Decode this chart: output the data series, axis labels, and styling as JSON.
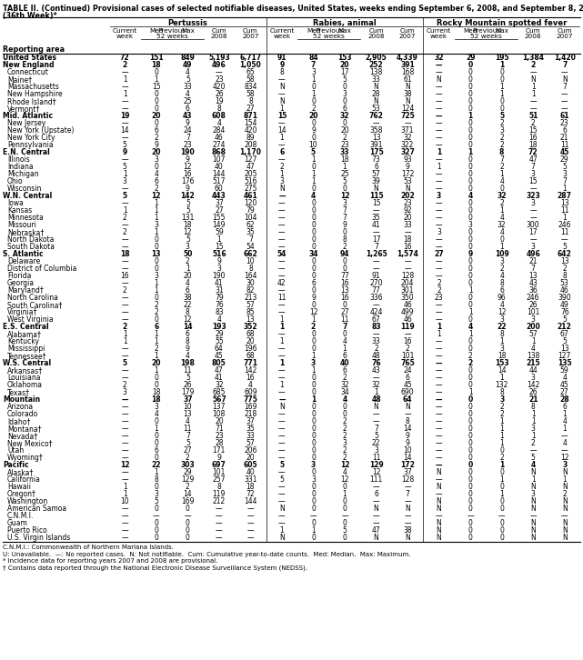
{
  "title_line1": "TABLE II. (Continued) Provisional cases of selected notifiable diseases, United States, weeks ending September 6, 2008, and September 8, 2007",
  "title_line2": "(36th Week)*",
  "diseases": [
    "Pertussis",
    "Rabies, animal",
    "Rocky Mountain spotted fever"
  ],
  "rows": [
    [
      "United States",
      "72",
      "151",
      "849",
      "5,193",
      "6,717",
      "91",
      "84",
      "153",
      "2,905",
      "4,339",
      "32",
      "29",
      "195",
      "1,384",
      "1,420"
    ],
    [
      "New England",
      "2",
      "18",
      "49",
      "496",
      "1,050",
      "9",
      "7",
      "20",
      "252",
      "391",
      "—",
      "0",
      "1",
      "2",
      "7"
    ],
    [
      "Connecticut",
      "—",
      "0",
      "4",
      "—",
      "65",
      "8",
      "3",
      "17",
      "138",
      "168",
      "—",
      "0",
      "0",
      "—",
      "—"
    ],
    [
      "Maine†",
      "1",
      "1",
      "5",
      "23",
      "58",
      "—",
      "1",
      "5",
      "33",
      "61",
      "N",
      "0",
      "0",
      "N",
      "N"
    ],
    [
      "Massachusetts",
      "—",
      "15",
      "33",
      "420",
      "834",
      "N",
      "0",
      "0",
      "N",
      "N",
      "—",
      "0",
      "1",
      "1",
      "7"
    ],
    [
      "New Hampshire",
      "1",
      "0",
      "4",
      "26",
      "58",
      "—",
      "1",
      "3",
      "28",
      "38",
      "—",
      "0",
      "1",
      "1",
      "—"
    ],
    [
      "Rhode Island†",
      "—",
      "0",
      "25",
      "19",
      "8",
      "N",
      "0",
      "0",
      "N",
      "N",
      "—",
      "0",
      "0",
      "—",
      "—"
    ],
    [
      "Vermont†",
      "—",
      "0",
      "6",
      "8",
      "27",
      "1",
      "2",
      "6",
      "53",
      "124",
      "—",
      "0",
      "0",
      "—",
      "—"
    ],
    [
      "Mid. Atlantic",
      "19",
      "20",
      "43",
      "608",
      "871",
      "15",
      "20",
      "32",
      "762",
      "725",
      "—",
      "1",
      "5",
      "51",
      "61"
    ],
    [
      "New Jersey",
      "—",
      "0",
      "9",
      "4",
      "154",
      "—",
      "0",
      "0",
      "—",
      "—",
      "—",
      "0",
      "2",
      "2",
      "23"
    ],
    [
      "New York (Upstate)",
      "14",
      "6",
      "24",
      "284",
      "420",
      "14",
      "9",
      "20",
      "358",
      "371",
      "—",
      "0",
      "3",
      "15",
      "6"
    ],
    [
      "New York City",
      "—",
      "2",
      "7",
      "46",
      "89",
      "1",
      "0",
      "2",
      "13",
      "32",
      "—",
      "0",
      "2",
      "16",
      "21"
    ],
    [
      "Pennsylvania",
      "5",
      "9",
      "23",
      "274",
      "208",
      "—",
      "10",
      "23",
      "391",
      "322",
      "—",
      "0",
      "2",
      "18",
      "11"
    ],
    [
      "E.N. Central",
      "9",
      "20",
      "190",
      "868",
      "1,170",
      "6",
      "5",
      "33",
      "175",
      "327",
      "1",
      "1",
      "8",
      "72",
      "45"
    ],
    [
      "Illinois",
      "—",
      "3",
      "9",
      "107",
      "127",
      "—",
      "1",
      "18",
      "73",
      "93",
      "—",
      "0",
      "7",
      "47",
      "29"
    ],
    [
      "Indiana",
      "5",
      "0",
      "12",
      "40",
      "47",
      "2",
      "0",
      "1",
      "6",
      "9",
      "1",
      "0",
      "2",
      "7",
      "5"
    ],
    [
      "Michigan",
      "1",
      "4",
      "16",
      "144",
      "205",
      "1",
      "1",
      "25",
      "57",
      "172",
      "—",
      "0",
      "1",
      "3",
      "3"
    ],
    [
      "Ohio",
      "3",
      "6",
      "176",
      "517",
      "516",
      "3",
      "1",
      "5",
      "39",
      "53",
      "—",
      "0",
      "4",
      "15",
      "7"
    ],
    [
      "Wisconsin",
      "—",
      "2",
      "9",
      "60",
      "275",
      "N",
      "0",
      "0",
      "N",
      "N",
      "—",
      "0",
      "0",
      "—",
      "1"
    ],
    [
      "W.N. Central",
      "5",
      "12",
      "142",
      "443",
      "461",
      "—",
      "4",
      "12",
      "115",
      "202",
      "3",
      "4",
      "32",
      "323",
      "287"
    ],
    [
      "Iowa",
      "—",
      "1",
      "5",
      "37",
      "120",
      "—",
      "0",
      "3",
      "15",
      "23",
      "—",
      "0",
      "2",
      "3",
      "13"
    ],
    [
      "Kansas",
      "1",
      "1",
      "5",
      "27",
      "79",
      "—",
      "0",
      "7",
      "—",
      "92",
      "—",
      "0",
      "1",
      "—",
      "11"
    ],
    [
      "Minnesota",
      "2",
      "1",
      "131",
      "155",
      "104",
      "—",
      "0",
      "7",
      "35",
      "20",
      "—",
      "0",
      "4",
      "—",
      "1"
    ],
    [
      "Missouri",
      "—",
      "3",
      "18",
      "149",
      "62",
      "—",
      "0",
      "9",
      "41",
      "33",
      "—",
      "3",
      "32",
      "300",
      "246"
    ],
    [
      "Nebraska†",
      "2",
      "1",
      "12",
      "59",
      "35",
      "—",
      "0",
      "0",
      "—",
      "—",
      "3",
      "0",
      "4",
      "17",
      "11"
    ],
    [
      "North Dakota",
      "—",
      "0",
      "5",
      "1",
      "7",
      "—",
      "0",
      "8",
      "17",
      "18",
      "—",
      "0",
      "0",
      "—",
      "—"
    ],
    [
      "South Dakota",
      "—",
      "0",
      "3",
      "15",
      "54",
      "—",
      "0",
      "2",
      "7",
      "16",
      "—",
      "0",
      "1",
      "3",
      "5"
    ],
    [
      "S. Atlantic",
      "18",
      "13",
      "50",
      "516",
      "662",
      "54",
      "34",
      "94",
      "1,265",
      "1,574",
      "27",
      "9",
      "109",
      "496",
      "642"
    ],
    [
      "Delaware",
      "—",
      "0",
      "2",
      "9",
      "10",
      "—",
      "0",
      "0",
      "—",
      "—",
      "—",
      "0",
      "3",
      "21",
      "13"
    ],
    [
      "District of Columbia",
      "—",
      "0",
      "1",
      "3",
      "8",
      "—",
      "0",
      "0",
      "—",
      "—",
      "—",
      "0",
      "2",
      "7",
      "2"
    ],
    [
      "Florida",
      "16",
      "3",
      "20",
      "190",
      "164",
      "—",
      "0",
      "77",
      "91",
      "128",
      "—",
      "0",
      "4",
      "13",
      "8"
    ],
    [
      "Georgia",
      "—",
      "1",
      "4",
      "41",
      "30",
      "42",
      "6",
      "16",
      "270",
      "204",
      "2",
      "0",
      "8",
      "43",
      "53"
    ],
    [
      "Maryland†",
      "2",
      "1",
      "6",
      "31",
      "82",
      "—",
      "0",
      "13",
      "77",
      "301",
      "2",
      "1",
      "6",
      "36",
      "46"
    ],
    [
      "North Carolina",
      "—",
      "0",
      "38",
      "79",
      "213",
      "11",
      "9",
      "16",
      "336",
      "350",
      "23",
      "0",
      "96",
      "246",
      "390"
    ],
    [
      "South Carolina†",
      "—",
      "2",
      "22",
      "76",
      "57",
      "—",
      "0",
      "0",
      "—",
      "46",
      "—",
      "0",
      "4",
      "26",
      "49"
    ],
    [
      "Virginia†",
      "—",
      "2",
      "8",
      "83",
      "85",
      "—",
      "12",
      "27",
      "424",
      "499",
      "—",
      "1",
      "12",
      "101",
      "76"
    ],
    [
      "West Virginia",
      "—",
      "0",
      "12",
      "4",
      "13",
      "1",
      "1",
      "11",
      "67",
      "46",
      "—",
      "0",
      "3",
      "3",
      "5"
    ],
    [
      "E.S. Central",
      "2",
      "6",
      "14",
      "193",
      "352",
      "1",
      "2",
      "7",
      "83",
      "119",
      "1",
      "4",
      "22",
      "200",
      "212"
    ],
    [
      "Alabama†",
      "1",
      "1",
      "6",
      "29",
      "68",
      "—",
      "0",
      "0",
      "—",
      "—",
      "1",
      "1",
      "8",
      "57",
      "67"
    ],
    [
      "Kentucky",
      "1",
      "1",
      "8",
      "55",
      "20",
      "1",
      "0",
      "4",
      "33",
      "16",
      "—",
      "0",
      "1",
      "1",
      "5"
    ],
    [
      "Mississippi",
      "—",
      "2",
      "9",
      "64",
      "196",
      "—",
      "0",
      "1",
      "2",
      "2",
      "—",
      "0",
      "3",
      "4",
      "13"
    ],
    [
      "Tennessee†",
      "—",
      "1",
      "4",
      "45",
      "68",
      "—",
      "1",
      "6",
      "48",
      "101",
      "—",
      "2",
      "18",
      "138",
      "127"
    ],
    [
      "W.S. Central",
      "5",
      "20",
      "198",
      "805",
      "771",
      "1",
      "3",
      "40",
      "76",
      "765",
      "—",
      "2",
      "153",
      "215",
      "135"
    ],
    [
      "Arkansas†",
      "—",
      "1",
      "11",
      "47",
      "142",
      "—",
      "1",
      "6",
      "43",
      "24",
      "—",
      "0",
      "14",
      "44",
      "59"
    ],
    [
      "Louisiana",
      "—",
      "0",
      "5",
      "41",
      "16",
      "—",
      "0",
      "2",
      "—",
      "6",
      "—",
      "0",
      "1",
      "3",
      "4"
    ],
    [
      "Oklahoma",
      "2",
      "0",
      "26",
      "32",
      "4",
      "1",
      "0",
      "32",
      "32",
      "45",
      "—",
      "0",
      "132",
      "142",
      "45"
    ],
    [
      "Texas†",
      "3",
      "18",
      "179",
      "685",
      "609",
      "—",
      "0",
      "34",
      "1",
      "690",
      "—",
      "1",
      "8",
      "26",
      "27"
    ],
    [
      "Mountain",
      "—",
      "18",
      "37",
      "567",
      "775",
      "—",
      "1",
      "4",
      "48",
      "64",
      "—",
      "0",
      "3",
      "21",
      "28"
    ],
    [
      "Arizona",
      "—",
      "3",
      "10",
      "137",
      "169",
      "N",
      "0",
      "0",
      "N",
      "N",
      "—",
      "0",
      "2",
      "8",
      "6"
    ],
    [
      "Colorado",
      "—",
      "4",
      "13",
      "108",
      "218",
      "—",
      "0",
      "0",
      "—",
      "—",
      "—",
      "0",
      "2",
      "1",
      "1"
    ],
    [
      "Idaho†",
      "—",
      "0",
      "4",
      "20",
      "37",
      "—",
      "0",
      "2",
      "—",
      "8",
      "—",
      "0",
      "1",
      "1",
      "4"
    ],
    [
      "Montana†",
      "—",
      "1",
      "11",
      "71",
      "35",
      "—",
      "0",
      "2",
      "7",
      "14",
      "—",
      "0",
      "1",
      "3",
      "1"
    ],
    [
      "Nevada†",
      "—",
      "0",
      "7",
      "23",
      "33",
      "—",
      "0",
      "2",
      "5",
      "9",
      "—",
      "0",
      "1",
      "1",
      "—"
    ],
    [
      "New Mexico†",
      "—",
      "0",
      "5",
      "28",
      "57",
      "—",
      "0",
      "3",
      "22",
      "9",
      "—",
      "0",
      "1",
      "2",
      "4"
    ],
    [
      "Utah",
      "—",
      "6",
      "27",
      "171",
      "206",
      "—",
      "0",
      "2",
      "3",
      "10",
      "—",
      "0",
      "0",
      "—",
      "—"
    ],
    [
      "Wyoming†",
      "—",
      "0",
      "2",
      "9",
      "20",
      "—",
      "0",
      "2",
      "11",
      "14",
      "—",
      "0",
      "2",
      "5",
      "12"
    ],
    [
      "Pacific",
      "12",
      "22",
      "303",
      "697",
      "605",
      "5",
      "3",
      "12",
      "129",
      "172",
      "—",
      "0",
      "1",
      "4",
      "3"
    ],
    [
      "Alaska†",
      "—",
      "1",
      "29",
      "101",
      "40",
      "—",
      "0",
      "4",
      "12",
      "37",
      "N",
      "0",
      "0",
      "N",
      "N"
    ],
    [
      "California",
      "—",
      "8",
      "129",
      "257",
      "331",
      "5",
      "3",
      "12",
      "111",
      "128",
      "—",
      "0",
      "1",
      "1",
      "1"
    ],
    [
      "Hawaii",
      "1",
      "0",
      "2",
      "8",
      "18",
      "—",
      "0",
      "0",
      "—",
      "—",
      "N",
      "0",
      "0",
      "N",
      "N"
    ],
    [
      "Oregon†",
      "1",
      "3",
      "14",
      "119",
      "72",
      "—",
      "0",
      "1",
      "6",
      "7",
      "—",
      "0",
      "1",
      "3",
      "2"
    ],
    [
      "Washington",
      "10",
      "5",
      "169",
      "212",
      "144",
      "—",
      "0",
      "0",
      "—",
      "—",
      "N",
      "0",
      "0",
      "N",
      "N"
    ],
    [
      "American Samoa",
      "—",
      "0",
      "0",
      "—",
      "—",
      "N",
      "0",
      "0",
      "N",
      "N",
      "N",
      "0",
      "0",
      "N",
      "N"
    ],
    [
      "C.N.M.I.",
      "—",
      "—",
      "—",
      "—",
      "—",
      "—",
      "—",
      "—",
      "—",
      "—",
      "—",
      "—",
      "—",
      "—",
      "—"
    ],
    [
      "Guam",
      "—",
      "0",
      "0",
      "—",
      "—",
      "—",
      "0",
      "0",
      "—",
      "—",
      "N",
      "0",
      "0",
      "N",
      "N"
    ],
    [
      "Puerto Rico",
      "—",
      "0",
      "0",
      "—",
      "—",
      "1",
      "1",
      "5",
      "47",
      "38",
      "N",
      "0",
      "0",
      "N",
      "N"
    ],
    [
      "U.S. Virgin Islands",
      "—",
      "0",
      "0",
      "—",
      "—",
      "N",
      "0",
      "0",
      "N",
      "N",
      "N",
      "0",
      "0",
      "N",
      "N"
    ]
  ],
  "bold_rows": [
    0,
    1,
    8,
    13,
    19,
    27,
    37,
    42,
    47,
    56
  ],
  "indent_rows": [
    2,
    3,
    4,
    5,
    6,
    7,
    9,
    10,
    11,
    12,
    14,
    15,
    16,
    17,
    18,
    20,
    21,
    22,
    23,
    24,
    25,
    26,
    28,
    29,
    30,
    31,
    32,
    33,
    34,
    35,
    36,
    38,
    39,
    40,
    41,
    43,
    44,
    45,
    46,
    48,
    49,
    50,
    51,
    52,
    53,
    54,
    55,
    57,
    58,
    59,
    60,
    61,
    62,
    63,
    64,
    65,
    66,
    67
  ],
  "footnotes": [
    "C.N.M.I.: Commonwealth of Northern Mariana Islands.",
    "U: Unavailable.  —: No reported cases.  N: Not notifiable.  Cum: Cumulative year-to-date counts.  Med: Median.  Max: Maximum.",
    "* Incidence data for reporting years 2007 and 2008 are provisional.",
    "† Contains data reported through the National Electronic Disease Surveillance System (NEDSS)."
  ]
}
